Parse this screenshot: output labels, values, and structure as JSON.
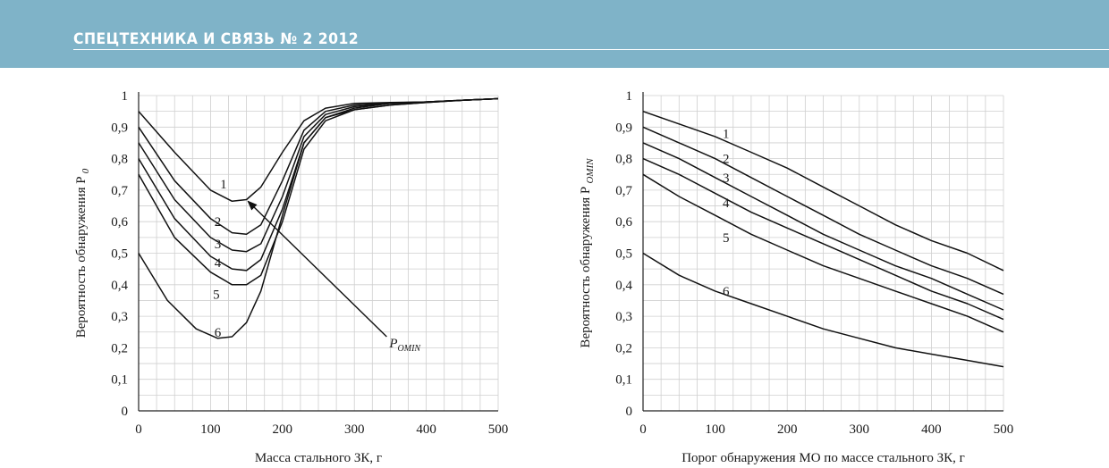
{
  "header": {
    "title": "СПЕЦТЕХНИКА И СВЯЗЬ № 2 2012",
    "banner_color": "#7fb3c8"
  },
  "chart_data": [
    {
      "type": "line",
      "xlabel": "Масса стального ЗК, г",
      "ylabel": "Вероятность обнаружения P",
      "ylabel_sub": "0",
      "xlim": [
        0,
        500
      ],
      "ylim": [
        0,
        1
      ],
      "xticks": [
        "0",
        "100",
        "200",
        "300",
        "400",
        "500"
      ],
      "yticks": [
        "0",
        "0,1",
        "0,2",
        "0,3",
        "0,4",
        "0,5",
        "0,6",
        "0,7",
        "0,8",
        "0,9",
        "1"
      ],
      "grid": true,
      "annotation": {
        "text": "P",
        "sub": "OMIN"
      },
      "series": [
        {
          "name": "1",
          "x": [
            0,
            50,
            100,
            130,
            150,
            170,
            200,
            230,
            260,
            300,
            350,
            400,
            450,
            500
          ],
          "y": [
            0.95,
            0.82,
            0.7,
            0.665,
            0.67,
            0.71,
            0.82,
            0.92,
            0.96,
            0.975,
            0.978,
            0.98,
            0.985,
            0.99
          ]
        },
        {
          "name": "2",
          "x": [
            0,
            50,
            100,
            130,
            150,
            170,
            200,
            230,
            260,
            300,
            350,
            400,
            450,
            500
          ],
          "y": [
            0.9,
            0.73,
            0.61,
            0.565,
            0.56,
            0.59,
            0.73,
            0.89,
            0.95,
            0.97,
            0.977,
            0.98,
            0.985,
            0.99
          ]
        },
        {
          "name": "3",
          "x": [
            0,
            50,
            100,
            130,
            150,
            170,
            200,
            230,
            260,
            300,
            350,
            400,
            450,
            500
          ],
          "y": [
            0.85,
            0.67,
            0.55,
            0.51,
            0.505,
            0.53,
            0.68,
            0.87,
            0.94,
            0.965,
            0.975,
            0.98,
            0.985,
            0.99
          ]
        },
        {
          "name": "4",
          "x": [
            0,
            50,
            100,
            130,
            150,
            170,
            200,
            230,
            260,
            300,
            350,
            400,
            450,
            500
          ],
          "y": [
            0.8,
            0.61,
            0.49,
            0.45,
            0.445,
            0.48,
            0.64,
            0.85,
            0.93,
            0.96,
            0.975,
            0.98,
            0.985,
            0.99
          ]
        },
        {
          "name": "5",
          "x": [
            0,
            50,
            100,
            130,
            150,
            170,
            200,
            230,
            260,
            300,
            350,
            400,
            450,
            500
          ],
          "y": [
            0.75,
            0.55,
            0.44,
            0.4,
            0.4,
            0.43,
            0.6,
            0.83,
            0.92,
            0.955,
            0.97,
            0.978,
            0.985,
            0.99
          ]
        },
        {
          "name": "6",
          "x": [
            0,
            40,
            80,
            110,
            130,
            150,
            170,
            200,
            230,
            260,
            300,
            350,
            400,
            450,
            500
          ],
          "y": [
            0.5,
            0.35,
            0.26,
            0.23,
            0.235,
            0.28,
            0.38,
            0.62,
            0.85,
            0.93,
            0.955,
            0.97,
            0.978,
            0.985,
            0.99
          ]
        }
      ]
    },
    {
      "type": "line",
      "xlabel": "Порог обнаружения МО по массе стального ЗК, г",
      "ylabel": "Вероятность обнаружения P",
      "ylabel_sub": "OMIN",
      "xlim": [
        0,
        500
      ],
      "ylim": [
        0,
        1
      ],
      "xticks": [
        "0",
        "100",
        "200",
        "300",
        "400",
        "500"
      ],
      "yticks": [
        "0",
        "0,1",
        "0,2",
        "0,3",
        "0,4",
        "0,5",
        "0,6",
        "0,7",
        "0,8",
        "0,9",
        "1"
      ],
      "grid": true,
      "series": [
        {
          "name": "1",
          "x": [
            0,
            50,
            100,
            150,
            200,
            250,
            300,
            350,
            400,
            450,
            500
          ],
          "y": [
            0.95,
            0.91,
            0.87,
            0.82,
            0.77,
            0.71,
            0.65,
            0.59,
            0.54,
            0.5,
            0.445
          ]
        },
        {
          "name": "2",
          "x": [
            0,
            50,
            100,
            150,
            200,
            250,
            300,
            350,
            400,
            450,
            500
          ],
          "y": [
            0.9,
            0.85,
            0.8,
            0.74,
            0.68,
            0.62,
            0.56,
            0.51,
            0.46,
            0.42,
            0.37
          ]
        },
        {
          "name": "3",
          "x": [
            0,
            50,
            100,
            150,
            200,
            250,
            300,
            350,
            400,
            450,
            500
          ],
          "y": [
            0.85,
            0.8,
            0.74,
            0.68,
            0.62,
            0.56,
            0.51,
            0.46,
            0.42,
            0.37,
            0.32
          ]
        },
        {
          "name": "4",
          "x": [
            0,
            50,
            100,
            150,
            200,
            250,
            300,
            350,
            400,
            450,
            500
          ],
          "y": [
            0.8,
            0.75,
            0.69,
            0.63,
            0.58,
            0.53,
            0.48,
            0.43,
            0.38,
            0.34,
            0.29
          ]
        },
        {
          "name": "5",
          "x": [
            0,
            50,
            100,
            150,
            200,
            250,
            300,
            350,
            400,
            450,
            500
          ],
          "y": [
            0.75,
            0.68,
            0.62,
            0.56,
            0.51,
            0.46,
            0.42,
            0.38,
            0.34,
            0.3,
            0.25
          ]
        },
        {
          "name": "6",
          "x": [
            0,
            50,
            100,
            150,
            200,
            250,
            300,
            350,
            400,
            450,
            500
          ],
          "y": [
            0.5,
            0.43,
            0.38,
            0.34,
            0.3,
            0.26,
            0.23,
            0.2,
            0.18,
            0.16,
            0.14
          ]
        }
      ]
    }
  ]
}
